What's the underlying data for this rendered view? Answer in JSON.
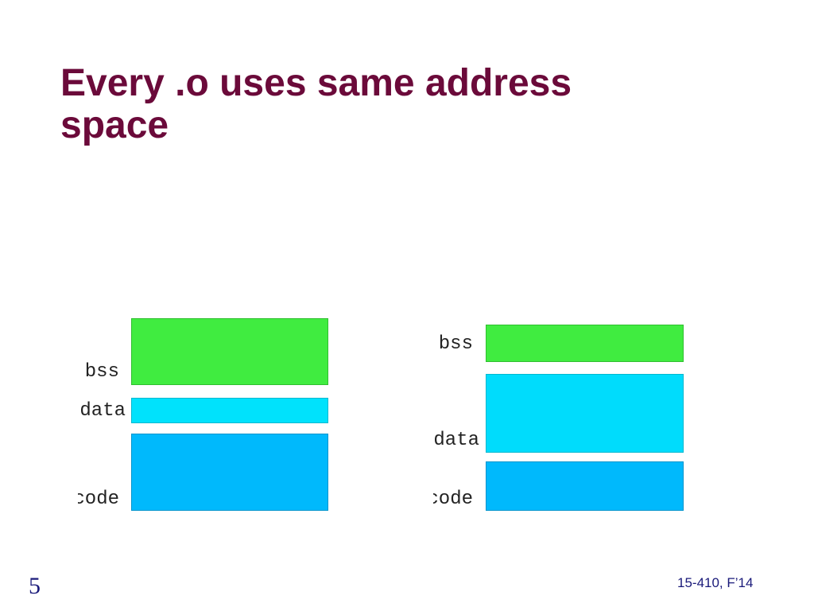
{
  "slide": {
    "title_line1": "Every .o uses same address",
    "title_line2": "space",
    "number": "5",
    "course": "15-410, F’14"
  },
  "left_diagram": {
    "labels": {
      "bss": "bss",
      "data": "data",
      "code": "code"
    },
    "colors": {
      "bss": "#40ec40",
      "data": "#00e2fc",
      "code": "#00b9fc"
    }
  },
  "right_diagram": {
    "labels": {
      "bss": "bss",
      "data": "data",
      "code": "code"
    },
    "colors": {
      "bss": "#40ec40",
      "data": "#00dcfc",
      "code": "#00b9fc"
    }
  }
}
